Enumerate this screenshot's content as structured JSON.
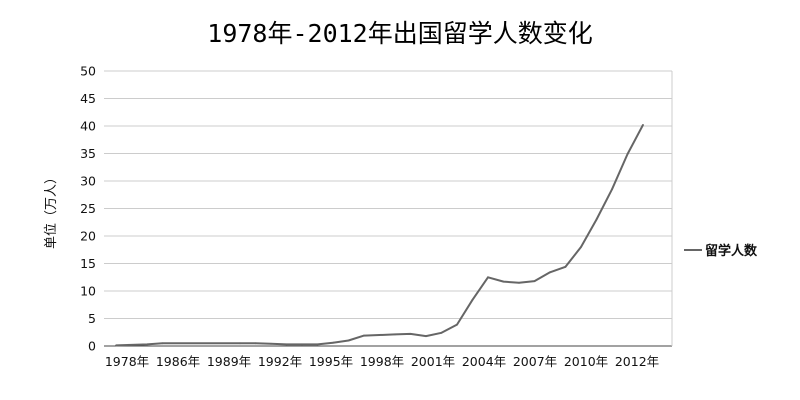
{
  "chart_data": {
    "type": "line",
    "title": "1978年-2012年出国留学人数变化",
    "xlabel": "",
    "ylabel": "单位（万人）",
    "ylim": [
      0,
      50
    ],
    "yticks": [
      0,
      5,
      10,
      15,
      20,
      25,
      30,
      35,
      40,
      45,
      50
    ],
    "x_tick_labels": [
      "1978年",
      "1986年",
      "1989年",
      "1992年",
      "1995年",
      "1998年",
      "2001年",
      "2004年",
      "2007年",
      "2010年",
      "2012年"
    ],
    "grid": true,
    "legend_position": "right",
    "colors": {
      "line": "#666666",
      "grid": "#cccccc",
      "axis": "#444444"
    },
    "series": [
      {
        "name": "留学人数",
        "points": [
          {
            "x": "1978",
            "y": 0.1
          },
          {
            "x": "1979",
            "y": 0.2
          },
          {
            "x": "1980",
            "y": 0.3
          },
          {
            "x": "1981",
            "y": 0.5
          },
          {
            "x": "1986",
            "y": 0.5
          },
          {
            "x": "1987",
            "y": 0.5
          },
          {
            "x": "1988",
            "y": 0.4
          },
          {
            "x": "1989",
            "y": 0.3
          },
          {
            "x": "1990",
            "y": 0.3
          },
          {
            "x": "1991",
            "y": 0.3
          },
          {
            "x": "1992",
            "y": 0.6
          },
          {
            "x": "1993",
            "y": 1.0
          },
          {
            "x": "1994",
            "y": 1.9
          },
          {
            "x": "1995",
            "y": 2.0
          },
          {
            "x": "1996",
            "y": 2.1
          },
          {
            "x": "1997",
            "y": 2.2
          },
          {
            "x": "1998",
            "y": 1.8
          },
          {
            "x": "1999",
            "y": 2.4
          },
          {
            "x": "2000",
            "y": 3.9
          },
          {
            "x": "2001",
            "y": 8.4
          },
          {
            "x": "2002",
            "y": 12.5
          },
          {
            "x": "2003",
            "y": 11.7
          },
          {
            "x": "2004",
            "y": 11.5
          },
          {
            "x": "2005",
            "y": 11.8
          },
          {
            "x": "2006",
            "y": 13.4
          },
          {
            "x": "2007",
            "y": 14.4
          },
          {
            "x": "2008",
            "y": 18.0
          },
          {
            "x": "2009",
            "y": 23.0
          },
          {
            "x": "2010",
            "y": 28.5
          },
          {
            "x": "2011",
            "y": 34.9
          },
          {
            "x": "2012",
            "y": 40.2
          }
        ]
      }
    ]
  }
}
